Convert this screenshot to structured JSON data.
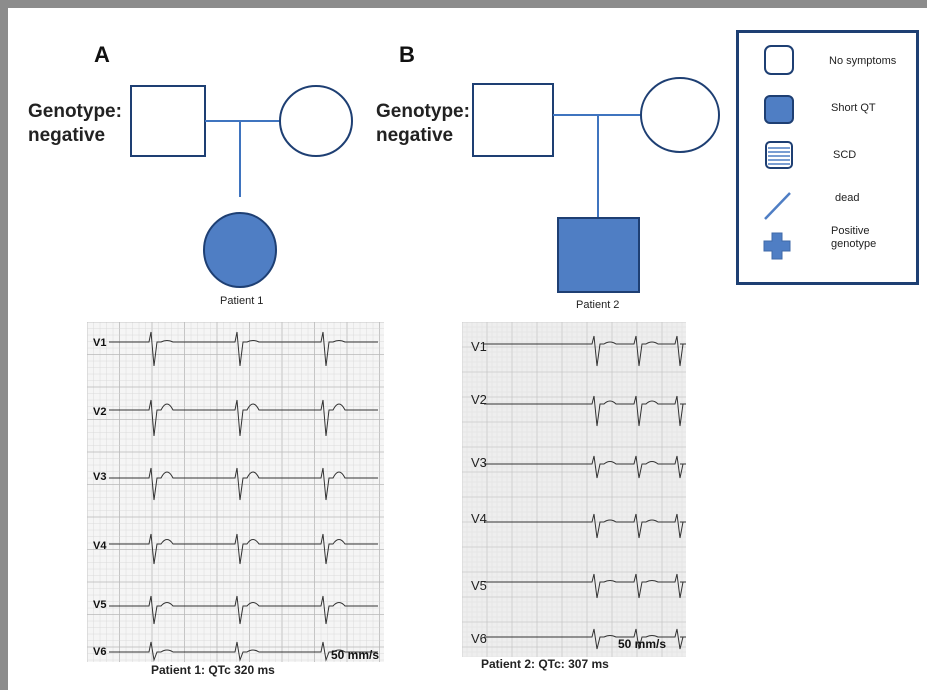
{
  "colors": {
    "outline": "#1e3f73",
    "fill_blue": "#4f7ec4",
    "line_blue": "#3f74bf",
    "frame": "#8c8c8c"
  },
  "panel_a": {
    "label": "A",
    "genotype_line1": "Genotype:",
    "genotype_line2": "negative",
    "patient_label": "Patient 1",
    "child_symbol": "filled-circle"
  },
  "panel_b": {
    "label": "B",
    "genotype_line1": "Genotype:",
    "genotype_line2": "negative",
    "patient_label": "Patient 2",
    "child_symbol": "filled-square"
  },
  "legend": {
    "items": [
      {
        "symbol": "empty-square-icon",
        "label": "No symptoms"
      },
      {
        "symbol": "filled-square-icon",
        "label": "Short QT"
      },
      {
        "symbol": "striped-square-icon",
        "label": "SCD"
      },
      {
        "symbol": "slash-line-icon",
        "label": "dead"
      },
      {
        "symbol": "plus-cross-icon",
        "label_line1": "Positive",
        "label_line2": "genotype"
      }
    ]
  },
  "ecg1": {
    "leads": [
      "V1",
      "V2",
      "V3",
      "V4",
      "V5",
      "V6"
    ],
    "speed": "50 mm/s",
    "caption": "Patient 1: QTc 320 ms"
  },
  "ecg2": {
    "leads": [
      "V1",
      "V2",
      "V3",
      "V4",
      "V5",
      "V6"
    ],
    "speed": "50 mm/s",
    "caption": "Patient 2: QTc: 307 ms"
  }
}
